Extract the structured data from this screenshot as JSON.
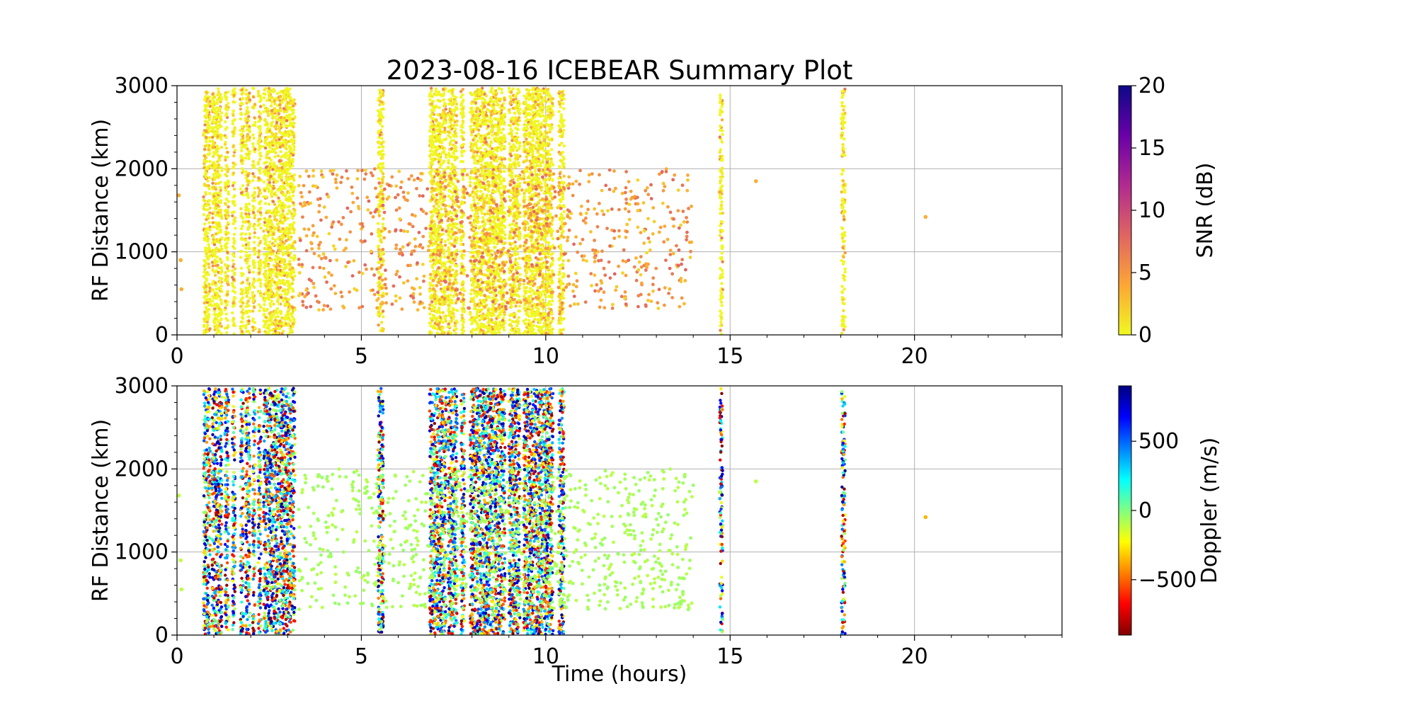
{
  "figure": {
    "title": "2023-08-16 ICEBEAR Summary Plot"
  },
  "chart_data": [
    {
      "type": "scatter",
      "panel": "top",
      "xlabel": "",
      "ylabel": "RF Distance (km)",
      "xlim": [
        0,
        24
      ],
      "ylim": [
        0,
        3000
      ],
      "x_ticks": [
        0,
        5,
        10,
        15,
        20
      ],
      "y_ticks": [
        0,
        1000,
        2000,
        3000
      ],
      "grid": true,
      "color_by": "SNR",
      "colorbar": {
        "label": "SNR (dB)",
        "colormap": "plasma_r",
        "range": [
          0,
          20
        ],
        "ticks": [
          0,
          5,
          10,
          15,
          20
        ],
        "colors": [
          "#f0f921",
          "#fca636",
          "#e16462",
          "#b12a90",
          "#6a00a8",
          "#0d0887"
        ]
      },
      "dense_bands": [
        [
          0.72,
          0.9
        ],
        [
          0.95,
          1.22
        ],
        [
          1.3,
          1.4
        ],
        [
          1.5,
          1.58
        ],
        [
          1.72,
          1.8
        ],
        [
          1.86,
          1.98
        ],
        [
          2.05,
          2.12
        ],
        [
          2.2,
          2.28
        ],
        [
          2.35,
          3.1
        ],
        [
          3.12,
          3.2
        ],
        [
          5.45,
          5.6
        ],
        [
          6.85,
          7.3
        ],
        [
          7.35,
          7.6
        ],
        [
          7.7,
          7.8
        ],
        [
          7.95,
          8.9
        ],
        [
          9.0,
          9.3
        ],
        [
          9.4,
          10.2
        ],
        [
          10.35,
          10.5
        ],
        [
          14.72,
          14.8
        ],
        [
          18.02,
          18.12
        ]
      ],
      "scattered_region": {
        "x": [
          3.3,
          14.0
        ],
        "y": [
          300,
          2000
        ]
      },
      "isolated_points": [
        {
          "x": 0.05,
          "y": 1680
        },
        {
          "x": 0.1,
          "y": 900
        },
        {
          "x": 0.12,
          "y": 550
        },
        {
          "x": 15.7,
          "y": 1850
        },
        {
          "x": 20.3,
          "y": 1420
        },
        {
          "x": 14.72,
          "y": 1720
        }
      ]
    },
    {
      "type": "scatter",
      "panel": "bottom",
      "xlabel": "Time (hours)",
      "ylabel": "RF Distance (km)",
      "xlim": [
        0,
        24
      ],
      "ylim": [
        0,
        3000
      ],
      "x_ticks": [
        0,
        5,
        10,
        15,
        20
      ],
      "y_ticks": [
        0,
        1000,
        2000,
        3000
      ],
      "grid": true,
      "color_by": "Doppler",
      "colorbar": {
        "label": "Doppler (m/s)",
        "colormap": "jet_r",
        "range": [
          -900,
          900
        ],
        "ticks": [
          -500,
          0,
          500
        ],
        "tick_labels": [
          "−500",
          "0",
          "500"
        ],
        "colors": [
          "#800000",
          "#ff0000",
          "#ff8000",
          "#ffff00",
          "#80ff80",
          "#00ffff",
          "#0080ff",
          "#0000ff",
          "#000080"
        ]
      },
      "dense_bands": [
        [
          0.72,
          0.9
        ],
        [
          0.95,
          1.22
        ],
        [
          1.3,
          1.4
        ],
        [
          1.5,
          1.58
        ],
        [
          1.72,
          1.8
        ],
        [
          1.86,
          1.98
        ],
        [
          2.05,
          2.12
        ],
        [
          2.2,
          2.28
        ],
        [
          2.35,
          3.1
        ],
        [
          3.12,
          3.2
        ],
        [
          5.45,
          5.6
        ],
        [
          6.85,
          7.3
        ],
        [
          7.35,
          7.6
        ],
        [
          7.7,
          7.8
        ],
        [
          7.95,
          8.9
        ],
        [
          9.0,
          9.3
        ],
        [
          9.4,
          10.2
        ],
        [
          10.35,
          10.5
        ],
        [
          14.72,
          14.8
        ],
        [
          18.02,
          18.12
        ]
      ],
      "scattered_region": {
        "x": [
          3.3,
          14.0
        ],
        "y": [
          300,
          2000
        ]
      },
      "isolated_points": [
        {
          "x": 0.05,
          "y": 1680
        },
        {
          "x": 0.1,
          "y": 900
        },
        {
          "x": 0.12,
          "y": 550
        },
        {
          "x": 15.7,
          "y": 1850
        },
        {
          "x": 20.3,
          "y": 1420
        },
        {
          "x": 14.72,
          "y": 1720
        }
      ]
    }
  ]
}
